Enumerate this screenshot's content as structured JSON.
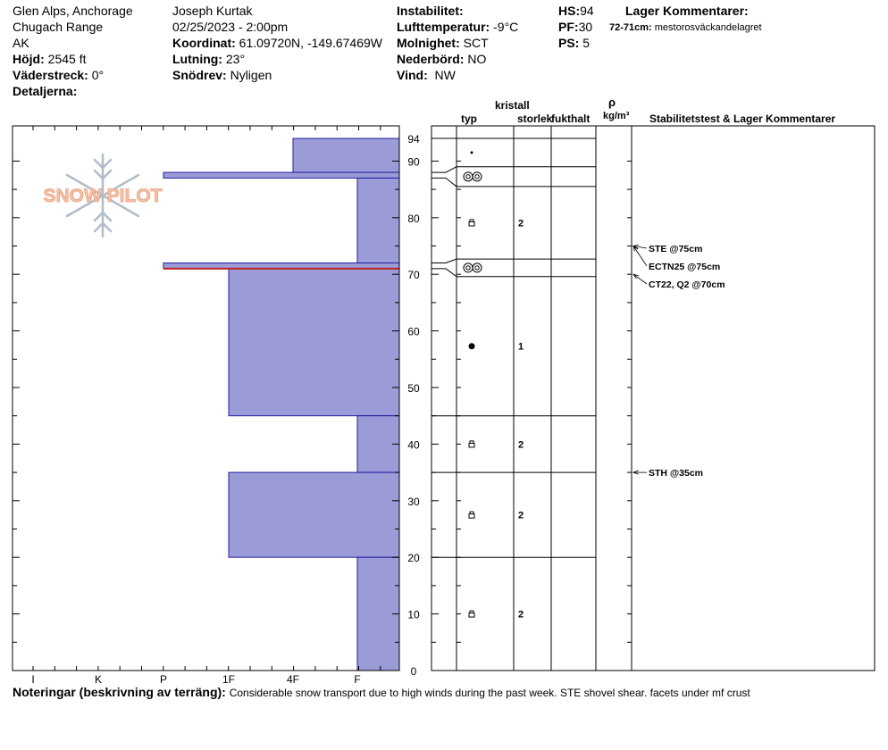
{
  "header": {
    "location": "Glen Alps, Anchorage",
    "range": "Chugach Range",
    "state": "AK",
    "elevation_label": "Höjd:",
    "elevation_value": "2545 ft",
    "aspect_label": "Väderstreck:",
    "aspect_value": "0°",
    "details_label": "Detaljerna:",
    "observer": "Joseph Kurtak",
    "datetime": "02/25/2023 - 2:00pm",
    "coord_label": "Koordinat:",
    "coord_value": "61.09720N, -149.67469W",
    "slope_label": "Lutning:",
    "slope_value": "23°",
    "drift_label": "Snödrev:",
    "drift_value": "Nyligen",
    "instability_label": "Instabilitet:",
    "air_temp_label": "Lufttemperatur:",
    "air_temp_value": "-9°C",
    "sky_label": "Molnighet:",
    "sky_value": "SCT",
    "precip_label": "Nederbörd:",
    "precip_value": "NO",
    "wind_label": "Vind:",
    "wind_value": "NW",
    "hs_label": "HS:",
    "hs_value": "94",
    "pf_label": "PF:",
    "pf_value": "30",
    "ps_label": "PS:",
    "ps_value": "5",
    "layer_comments_title": "Lager Kommentarer:",
    "layer_comment_range": "72-71cm:",
    "layer_comment_text": "mestorosväckandelagret"
  },
  "columns": {
    "crystal": "kristall",
    "type": "typ",
    "size": "storlek",
    "moisture": "fukthalt",
    "rho": "ρ",
    "density_unit": "kg/m³",
    "stability": "Stabilitetstest & Lager Kommentarer"
  },
  "logo": {
    "text": "SNOW PILOT"
  },
  "notes": {
    "label": "Noteringar (beskrivning av terräng):",
    "text": "Considerable snow transport due to high winds during the past week. STE shovel shear. facets under mf crust"
  },
  "colors": {
    "hardness_fill": "#9b9bd8",
    "hardness_stroke": "#2020a0",
    "critical_layer": "#c02020",
    "logo": "#f0b89a"
  },
  "chart_data": {
    "type": "snow-profile",
    "y_axis": {
      "label": "",
      "range": [
        0,
        94
      ],
      "ticks": [
        0,
        10,
        20,
        30,
        40,
        50,
        60,
        70,
        80,
        90,
        94
      ]
    },
    "hardness_axis": {
      "order": [
        "F",
        "4F",
        "1F",
        "P",
        "K",
        "I"
      ],
      "tick_labels": [
        "I",
        "K",
        "P",
        "1F",
        "4F",
        "F"
      ]
    },
    "layers": [
      {
        "top": 94,
        "bottom": 88,
        "hardness": "4F",
        "grain": "precip",
        "size": ""
      },
      {
        "top": 88,
        "bottom": 87,
        "hardness": "P",
        "grain": "crust",
        "size": ""
      },
      {
        "top": 87,
        "bottom": 72,
        "hardness": "F",
        "grain": "facet",
        "size": "2"
      },
      {
        "top": 72,
        "bottom": 71,
        "hardness": "P",
        "grain": "crust",
        "size": ""
      },
      {
        "top": 71,
        "bottom": 45,
        "hardness": "1F",
        "grain": "rounded",
        "size": "1"
      },
      {
        "top": 45,
        "bottom": 35,
        "hardness": "F",
        "grain": "facet",
        "size": "2"
      },
      {
        "top": 35,
        "bottom": 20,
        "hardness": "1F",
        "grain": "facet",
        "size": "2"
      },
      {
        "top": 20,
        "bottom": 0,
        "hardness": "F",
        "grain": "facet",
        "size": "2"
      }
    ],
    "critical_layer_depth": 71,
    "stability_tests": [
      {
        "label": "STE @75cm",
        "depth": 75
      },
      {
        "label": "ECTN25 @75cm",
        "depth": 75
      },
      {
        "label": "CT22, Q2 @70cm",
        "depth": 70
      },
      {
        "label": "STH @35cm",
        "depth": 35
      }
    ]
  }
}
